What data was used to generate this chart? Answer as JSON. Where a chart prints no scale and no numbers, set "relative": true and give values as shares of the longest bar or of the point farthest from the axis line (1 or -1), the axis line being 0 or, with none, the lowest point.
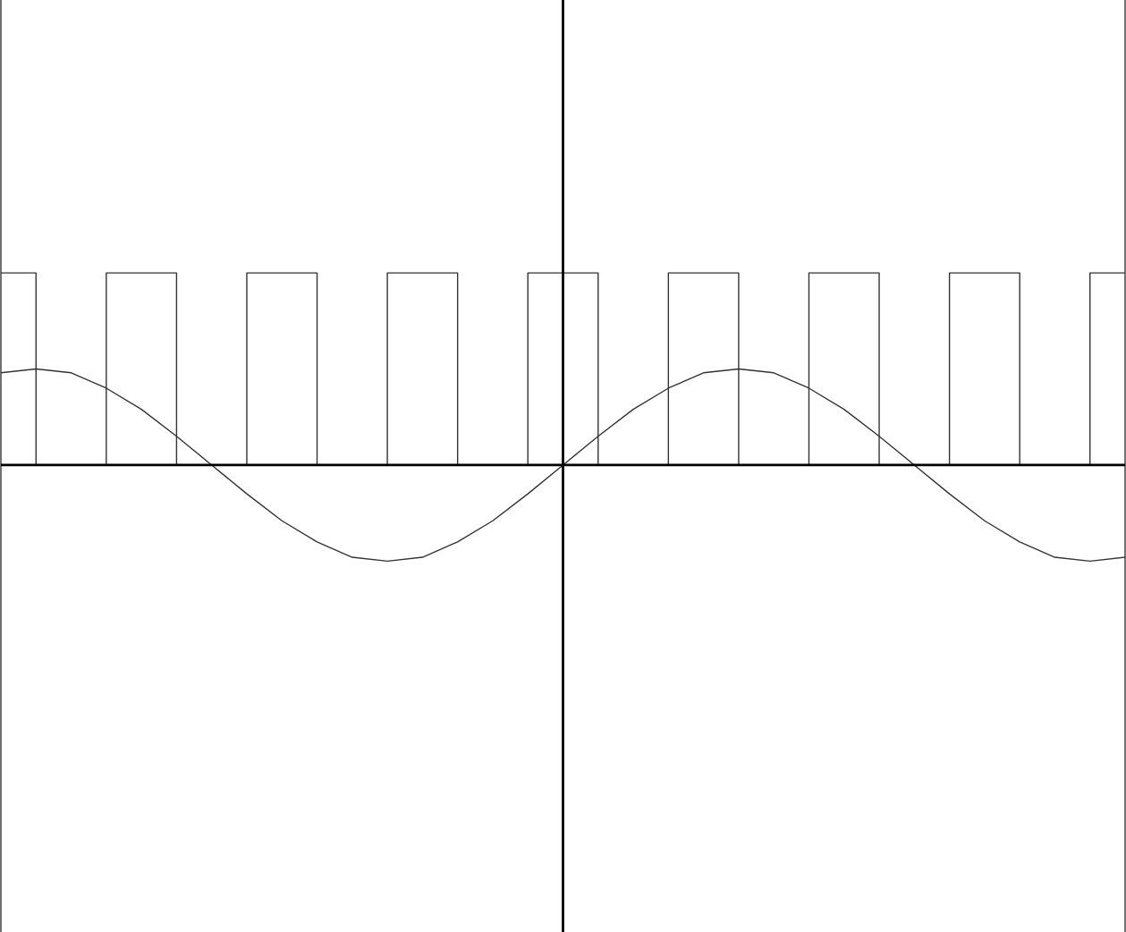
{
  "chart_data": {
    "type": "line",
    "relative": true,
    "categories": [
      null,
      null,
      null,
      null,
      null,
      null,
      null,
      null,
      null,
      null,
      null,
      null,
      null,
      null,
      null,
      null,
      null,
      null,
      null,
      null,
      null,
      null,
      null,
      null,
      null,
      null,
      null,
      null,
      null,
      null,
      null,
      null,
      null
    ],
    "series": [
      {
        "type": "step",
        "color": "#333333",
        "values": [
          1,
          0,
          0,
          1,
          1,
          0,
          0,
          1,
          1,
          0,
          0,
          1,
          1,
          0,
          0,
          1,
          1,
          0,
          0,
          1,
          1,
          0,
          0,
          1,
          1,
          0,
          0,
          1,
          1,
          0,
          0,
          1,
          1
        ]
      },
      {
        "color": "#333333",
        "values": [
          0.48,
          0.5,
          0.48,
          0.4,
          0.29,
          0.15,
          0,
          -0.15,
          -0.29,
          -0.4,
          -0.48,
          -0.5,
          -0.48,
          -0.4,
          -0.29,
          -0.15,
          0,
          0.15,
          0.29,
          0.4,
          0.48,
          0.5,
          0.48,
          0.4,
          0.29,
          0.15,
          0,
          -0.15,
          -0.29,
          -0.4,
          -0.48,
          -0.5,
          -0.48
        ]
      }
    ],
    "legend": false,
    "marker": "none",
    "line_style": "solid"
  }
}
